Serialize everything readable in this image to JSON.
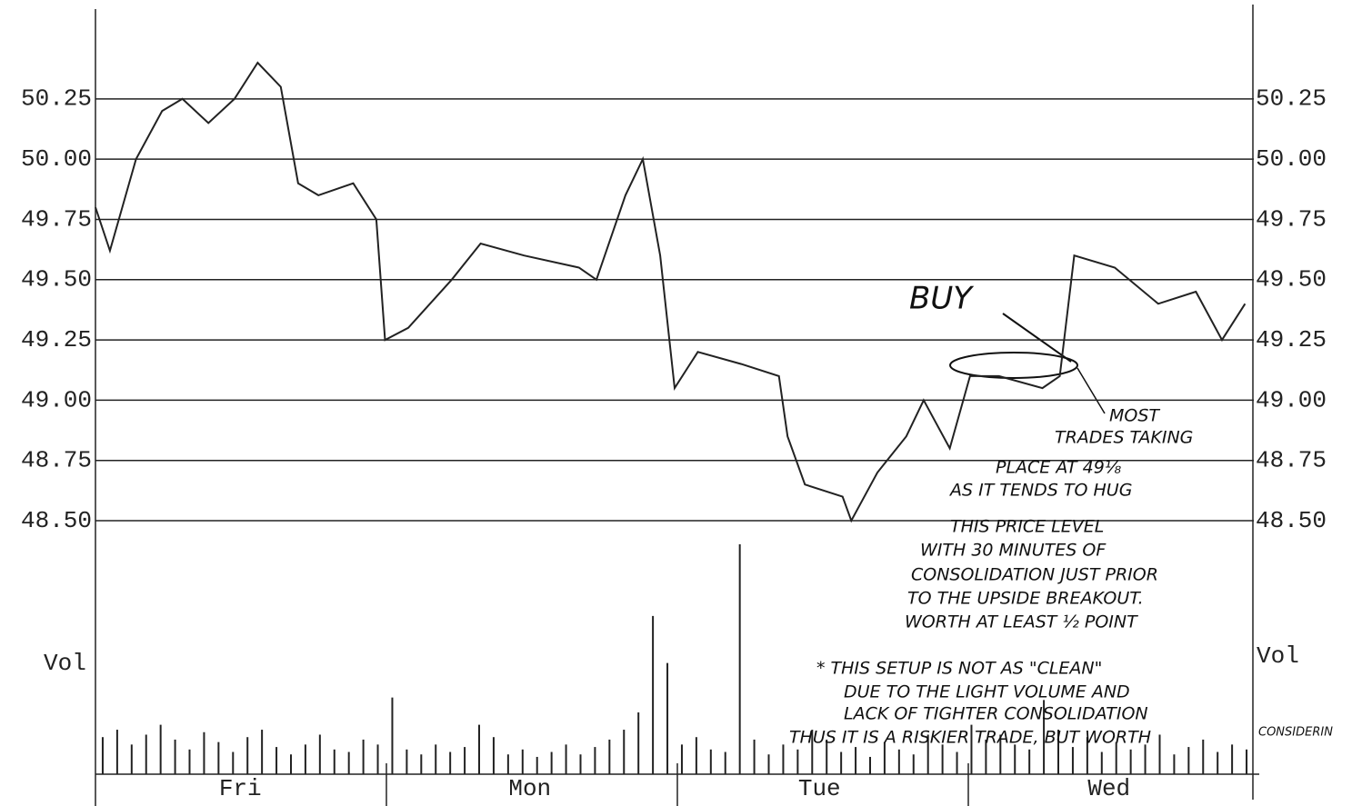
{
  "chart_data": [
    {
      "type": "line",
      "x": [
        0.0,
        0.05,
        0.14,
        0.23,
        0.3,
        0.39,
        0.48,
        0.56,
        0.64,
        0.7,
        0.77,
        0.89,
        0.97,
        1.0,
        1.08,
        1.23,
        1.33,
        1.48,
        1.67,
        1.73,
        1.83,
        1.89,
        1.95,
        2.0,
        2.08,
        2.23,
        2.36,
        2.39,
        2.45,
        2.58,
        2.61,
        2.7,
        2.8,
        2.86,
        2.95,
        3.02,
        3.12,
        3.27,
        3.33,
        3.38,
        3.52,
        3.67,
        3.8,
        3.89,
        3.97
      ],
      "values": [
        49.8,
        49.62,
        50.0,
        50.2,
        50.25,
        50.15,
        50.25,
        50.4,
        50.3,
        49.9,
        49.85,
        49.9,
        49.75,
        49.25,
        49.3,
        49.5,
        49.65,
        49.6,
        49.55,
        49.5,
        49.85,
        50.0,
        49.6,
        49.05,
        49.2,
        49.15,
        49.1,
        48.85,
        48.65,
        48.6,
        48.5,
        48.7,
        48.85,
        49.0,
        48.8,
        49.1,
        49.1,
        49.05,
        49.1,
        49.6,
        49.55,
        49.4,
        49.45,
        49.25,
        49.4
      ],
      "color": "#222222",
      "xlim": [
        0,
        4
      ],
      "ylim": [
        48.5,
        50.6
      ],
      "yticks": [
        {
          "value": 48.5,
          "label": "48.50"
        },
        48.75,
        {
          "value": 49,
          "label": "49.00"
        },
        49.25,
        {
          "value": 49.5,
          "label": "49.50"
        },
        49.75,
        {
          "value": 50,
          "label": "50.00"
        },
        50.25
      ],
      "grid": true,
      "annotations": {
        "buy": "BUY",
        "note": [
          "MOST",
          "TRADES TAKING",
          "PLACE AT 49⅛",
          "AS IT TENDS TO HUG",
          "THIS PRICE LEVEL",
          "WITH 30 MINUTES OF",
          "CONSOLIDATION JUST PRIOR",
          "TO THE UPSIDE BREAKOUT.",
          "WORTH AT LEAST ½ POINT"
        ],
        "caveat": [
          "* THIS SETUP IS NOT AS \"CLEAN\"",
          "DUE TO THE LIGHT VOLUME AND",
          "LACK OF TIGHTER CONSOLIDATION",
          "THUS IT IS A RISKIER TRADE, BUT WORTH",
          "CONSIDERIN"
        ]
      }
    },
    {
      "type": "bar",
      "y_label": "Vol",
      "categories": [
        "Fri",
        "Mon",
        "Tue",
        "Wed"
      ],
      "x": [
        0.025,
        0.075,
        0.125,
        0.175,
        0.225,
        0.275,
        0.325,
        0.375,
        0.425,
        0.475,
        0.525,
        0.575,
        0.625,
        0.675,
        0.725,
        0.775,
        0.825,
        0.875,
        0.925,
        0.975,
        1.025,
        1.075,
        1.125,
        1.175,
        1.225,
        1.275,
        1.325,
        1.375,
        1.425,
        1.475,
        1.525,
        1.575,
        1.625,
        1.675,
        1.725,
        1.775,
        1.825,
        1.875,
        1.925,
        1.975,
        2.025,
        2.075,
        2.125,
        2.175,
        2.225,
        2.275,
        2.325,
        2.375,
        2.425,
        2.475,
        2.525,
        2.575,
        2.625,
        2.675,
        2.725,
        2.775,
        2.825,
        2.875,
        2.925,
        2.975,
        3.025,
        3.075,
        3.125,
        3.175,
        3.225,
        3.275,
        3.325,
        3.375,
        3.425,
        3.475,
        3.525,
        3.575,
        3.625,
        3.675,
        3.725,
        3.775,
        3.825,
        3.875,
        3.925,
        3.975
      ],
      "values": [
        15,
        18,
        12,
        16,
        20,
        14,
        10,
        17,
        13,
        9,
        15,
        18,
        11,
        8,
        12,
        16,
        10,
        9,
        14,
        12,
        31,
        10,
        8,
        12,
        9,
        11,
        20,
        15,
        8,
        10,
        7,
        9,
        12,
        8,
        11,
        14,
        18,
        25,
        64,
        45,
        12,
        15,
        10,
        9,
        93,
        14,
        8,
        12,
        10,
        18,
        14,
        9,
        11,
        7,
        13,
        10,
        8,
        16,
        12,
        9,
        20,
        14,
        16,
        12,
        10,
        30,
        18,
        11,
        15,
        9,
        13,
        10,
        12,
        16,
        8,
        11,
        14,
        9,
        12,
        10
      ],
      "color": "#222222",
      "xlim": [
        0,
        4
      ],
      "ylim": [
        0,
        100
      ]
    }
  ]
}
